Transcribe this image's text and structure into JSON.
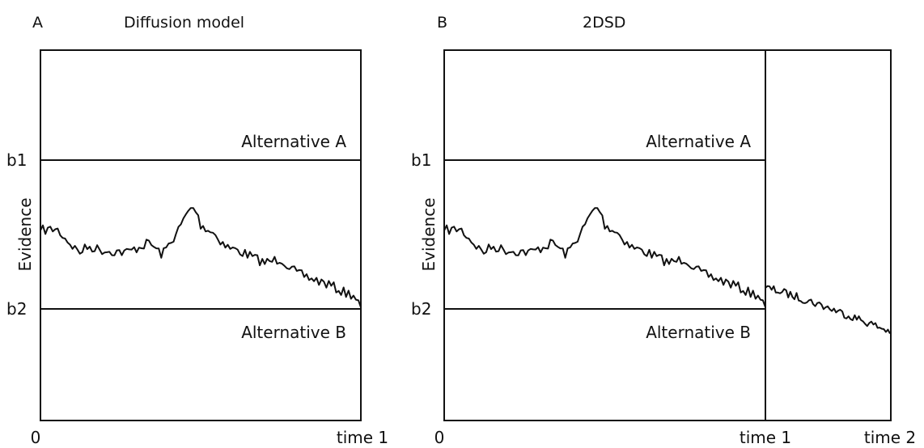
{
  "panelA": {
    "letter": "A",
    "title": "Diffusion model",
    "bound_upper": "b1",
    "bound_lower": "b2",
    "alt_upper": "Alternative A",
    "alt_lower": "Alternative B",
    "ylabel": "Evidence",
    "x_start": "0",
    "x_end": "time 1"
  },
  "panelB": {
    "letter": "B",
    "title": "2DSD",
    "bound_upper": "b1",
    "bound_lower": "b2",
    "alt_upper": "Alternative A",
    "alt_lower": "Alternative B",
    "ylabel": "Evidence",
    "x_start": "0",
    "x_mid": "time 1",
    "x_end": "time 2"
  }
}
